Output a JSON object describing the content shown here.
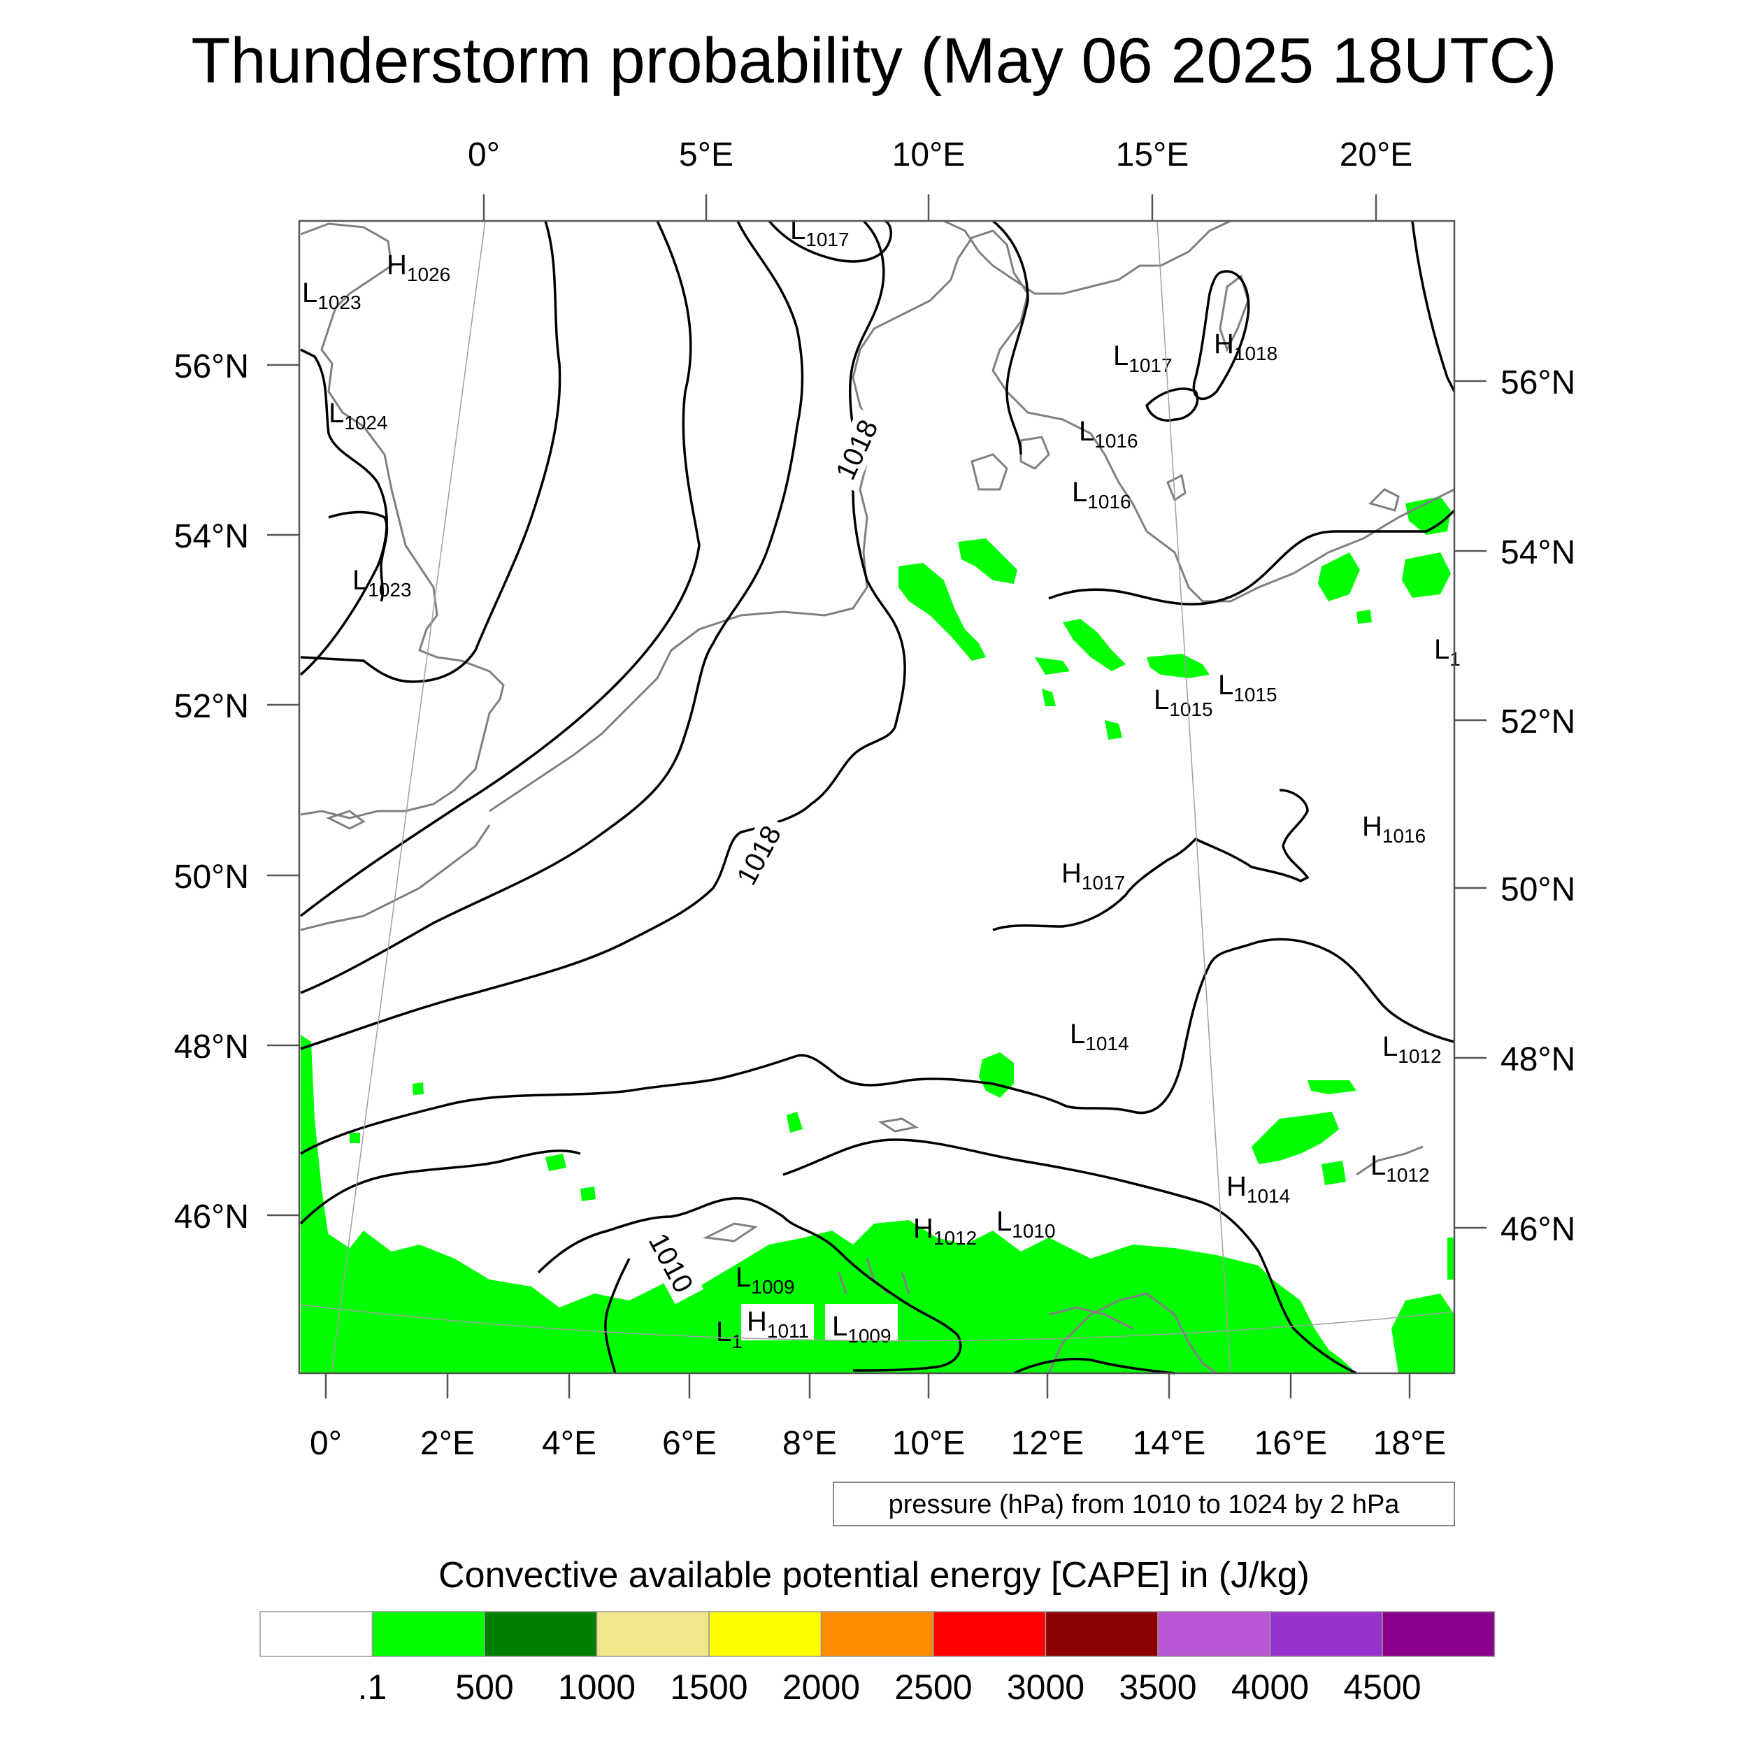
{
  "title": "Thunderstorm probability (May 06 2025 18UTC)",
  "top_lon_ticks": [
    "0°",
    "5°E",
    "10°E",
    "15°E",
    "20°E"
  ],
  "bottom_lon_ticks": [
    "0°",
    "2°E",
    "4°E",
    "6°E",
    "8°E",
    "10°E",
    "12°E",
    "14°E",
    "16°E",
    "18°E"
  ],
  "left_lat_ticks": [
    "56°N",
    "54°N",
    "52°N",
    "50°N",
    "48°N",
    "46°N"
  ],
  "right_lat_ticks": [
    "56°N",
    "54°N",
    "52°N",
    "50°N",
    "48°N",
    "46°N"
  ],
  "info_box": "pressure (hPa) from 1010 to 1024 by 2 hPa",
  "colorbar": {
    "title": "Convective available potential energy [CAPE] in (J/kg)",
    "colors": [
      "#ffffff",
      "#00ff00",
      "#008000",
      "#f0e68c",
      "#ffff00",
      "#ff8c00",
      "#ff0000",
      "#8b0000",
      "#ba55d3",
      "#9932cc",
      "#8b008b"
    ],
    "labels": [
      ".1",
      "500",
      "1000",
      "1500",
      "2000",
      "2500",
      "3000",
      "3500",
      "4000",
      "4500"
    ]
  },
  "pressure_centers": [
    {
      "type": "L",
      "value": "1017"
    },
    {
      "type": "H",
      "value": "1026"
    },
    {
      "type": "L",
      "value": "1023"
    },
    {
      "type": "L",
      "value": "1024"
    },
    {
      "type": "L",
      "value": "1023"
    },
    {
      "type": "L",
      "value": "1017"
    },
    {
      "type": "H",
      "value": "1018"
    },
    {
      "type": "L",
      "value": "1016"
    },
    {
      "type": "L",
      "value": "1016"
    },
    {
      "type": "L",
      "value": "1015"
    },
    {
      "type": "L",
      "value": "1015"
    },
    {
      "type": "L",
      "value": "1"
    },
    {
      "type": "H",
      "value": "1016"
    },
    {
      "type": "H",
      "value": "1017"
    },
    {
      "type": "L",
      "value": "1014"
    },
    {
      "type": "L",
      "value": "1012"
    },
    {
      "type": "L",
      "value": "1012"
    },
    {
      "type": "H",
      "value": "1014"
    },
    {
      "type": "H",
      "value": "1012"
    },
    {
      "type": "L",
      "value": "1010"
    },
    {
      "type": "L",
      "value": "1009"
    },
    {
      "type": "H",
      "value": "1011"
    },
    {
      "type": "L",
      "value": "1009"
    },
    {
      "type": "L",
      "value": "1"
    }
  ],
  "contour_labels": [
    "1018",
    "1018",
    "1010"
  ],
  "colors": {
    "contour": "#000000",
    "coastline": "#808080",
    "cape_low": "#00ff00"
  }
}
